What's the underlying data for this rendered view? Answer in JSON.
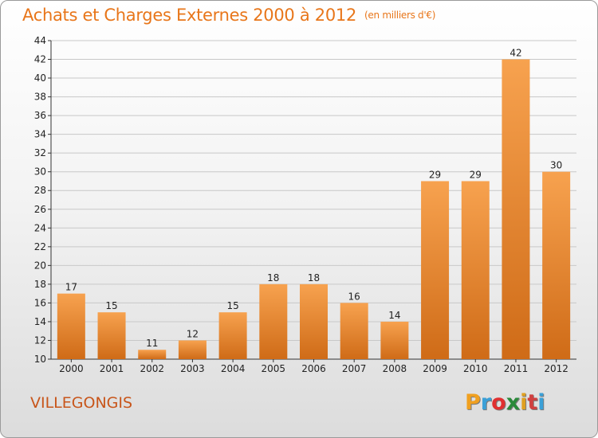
{
  "title": "Achats et Charges Externes 2000 à 2012",
  "unit": "(en milliers d'€)",
  "place": "VILLEGONGIS",
  "logo": {
    "letters": [
      "P",
      "r",
      "o",
      "x",
      "i",
      "t",
      "i"
    ],
    "colors": [
      "#f0a020",
      "#3aa0d8",
      "#e03030",
      "#2a8a3a",
      "#e0a020",
      "#d04040",
      "#3aa0d8"
    ]
  },
  "colors": {
    "bar_top": "#f7a24f",
    "bar_bottom": "#cf6b17",
    "title": "#e8761a"
  },
  "chart_data": {
    "type": "bar",
    "title": "Achats et Charges Externes 2000 à 2012",
    "subtitle": "(en milliers d'€)",
    "categories": [
      "2000",
      "2001",
      "2002",
      "2003",
      "2004",
      "2005",
      "2006",
      "2007",
      "2008",
      "2009",
      "2010",
      "2011",
      "2012"
    ],
    "values": [
      17,
      15,
      11,
      12,
      15,
      18,
      18,
      16,
      14,
      29,
      29,
      42,
      30
    ],
    "ylim": [
      10,
      44
    ],
    "yticks": [
      10,
      12,
      14,
      16,
      18,
      20,
      22,
      24,
      26,
      28,
      30,
      32,
      34,
      36,
      38,
      40,
      42,
      44
    ],
    "grid": "horizontal"
  }
}
